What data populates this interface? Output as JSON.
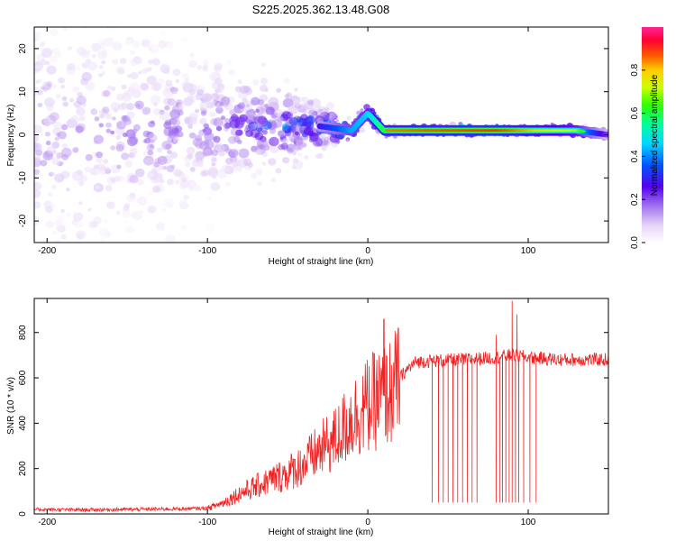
{
  "figure": {
    "title": "S225.2025.362.13.48.G08"
  },
  "chart_data": [
    {
      "type": "heatmap",
      "xlabel": "Height of straight line (km)",
      "ylabel": "Frequency (Hz)",
      "xlim": [
        -208,
        150
      ],
      "ylim": [
        -25,
        25
      ],
      "xticks": [
        -200,
        -100,
        0,
        100
      ],
      "yticks": [
        -20,
        -10,
        0,
        10,
        20
      ],
      "colorbar": {
        "label": "Normalized spectral amplitude",
        "ticks": [
          "0.0",
          "0.2",
          "0.4",
          "0.6",
          "0.8"
        ],
        "range": [
          0,
          1
        ]
      },
      "ridge": [
        {
          "x": -208,
          "freq": 0,
          "spread": 18,
          "amp": 0.15
        },
        {
          "x": -100,
          "freq": 1.5,
          "spread": 8,
          "amp": 0.2
        },
        {
          "x": -30,
          "freq": 2,
          "spread": 3,
          "amp": 0.4
        },
        {
          "x": -10,
          "freq": 1,
          "spread": 1,
          "amp": 0.6
        },
        {
          "x": 0,
          "freq": 5,
          "spread": 1,
          "amp": 0.65
        },
        {
          "x": 10,
          "freq": 1,
          "spread": 0.5,
          "amp": 0.85
        },
        {
          "x": 80,
          "freq": 1,
          "spread": 0.5,
          "amp": 0.9
        },
        {
          "x": 130,
          "freq": 1,
          "spread": 0.5,
          "amp": 0.7
        },
        {
          "x": 150,
          "freq": 0,
          "spread": 0.5,
          "amp": 0.3
        }
      ]
    },
    {
      "type": "line",
      "xlabel": "Height of straight line (km)",
      "ylabel": "SNR (10 * v/v)",
      "xlim": [
        -208,
        150
      ],
      "ylim": [
        0,
        950
      ],
      "xticks": [
        -200,
        -100,
        0,
        100
      ],
      "yticks": [
        0,
        200,
        400,
        600,
        800
      ],
      "series": [
        {
          "name": "SNR",
          "color": "#ee2222",
          "x": [
            -208,
            -180,
            -150,
            -120,
            -100,
            -90,
            -80,
            -70,
            -60,
            -50,
            -40,
            -30,
            -20,
            -10,
            0,
            10,
            15,
            20,
            25,
            30,
            40,
            60,
            80,
            90,
            100,
            120,
            150
          ],
          "y": [
            20,
            18,
            20,
            22,
            25,
            50,
            90,
            120,
            150,
            180,
            220,
            280,
            330,
            420,
            480,
            520,
            540,
            600,
            640,
            670,
            675,
            680,
            690,
            700,
            690,
            680,
            680
          ]
        }
      ],
      "dropouts_x": [
        40,
        44,
        47,
        50,
        53,
        56,
        59,
        62,
        65,
        68,
        80,
        82,
        84,
        86,
        88,
        90,
        92,
        94,
        97,
        101,
        105
      ],
      "dropout_floor": 50,
      "spikes": [
        {
          "x": 10,
          "y": 860
        },
        {
          "x": 90,
          "y": 940
        },
        {
          "x": 93,
          "y": 880
        },
        {
          "x": 80,
          "y": 790
        }
      ]
    }
  ]
}
